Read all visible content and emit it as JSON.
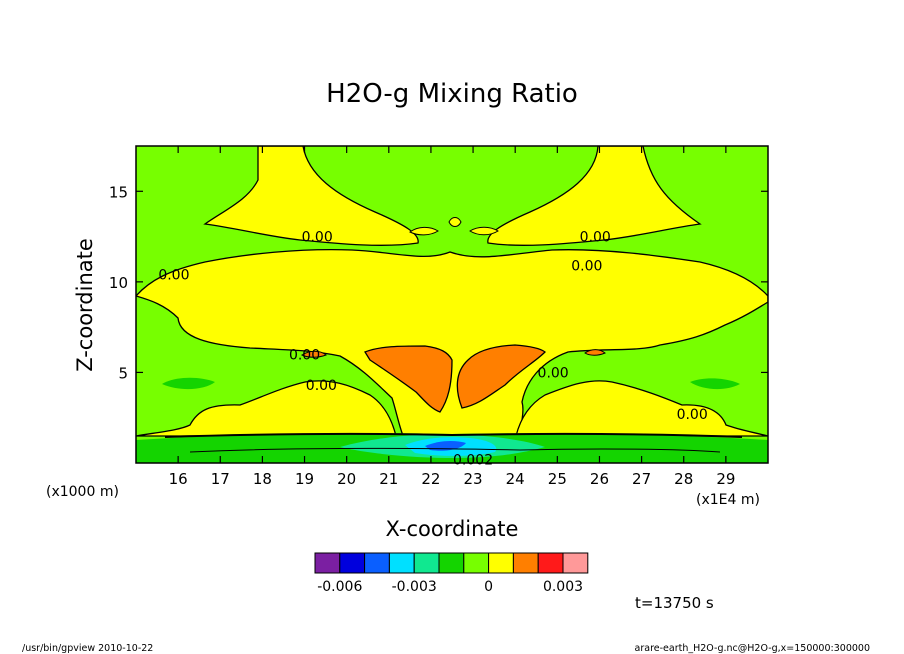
{
  "chart_data": {
    "type": "heatmap",
    "title": "H2O-g Mixing Ratio",
    "xlabel": "X-coordinate",
    "ylabel": "Z-coordinate",
    "x_unit": "(x1E4 m)",
    "y_unit": "(x1000 m)",
    "xlim": [
      15.0,
      30.0
    ],
    "ylim": [
      0.0,
      17.5
    ],
    "x_ticks": [
      16,
      17,
      18,
      19,
      20,
      21,
      22,
      23,
      24,
      25,
      26,
      27,
      28,
      29
    ],
    "y_ticks": [
      5,
      10,
      15
    ],
    "time_label": "t=13750 s",
    "colorbar": {
      "colors": [
        "#7b1fa2",
        "#0000dd",
        "#0a5fff",
        "#00e0ff",
        "#10e890",
        "#14d400",
        "#77ff00",
        "#ffff00",
        "#ff7f00",
        "#ff1a1a",
        "#ff9999"
      ],
      "tick_labels": [
        {
          "label": "-0.006",
          "boundary": 1
        },
        {
          "label": "-0.003",
          "boundary": 4
        },
        {
          "label": "0",
          "boundary": 7
        },
        {
          "label": "0.003",
          "boundary": 10
        }
      ]
    },
    "contour_labels": [
      {
        "text": "0.00",
        "x": 19.3,
        "z": 12.5
      },
      {
        "text": "0.00",
        "x": 15.9,
        "z": 10.4
      },
      {
        "text": "0.00",
        "x": 25.9,
        "z": 12.5
      },
      {
        "text": "0.00",
        "x": 25.7,
        "z": 10.9
      },
      {
        "text": "0.00",
        "x": 19.0,
        "z": 6.0
      },
      {
        "text": "0.00",
        "x": 19.4,
        "z": 4.3
      },
      {
        "text": "0.00",
        "x": 24.9,
        "z": 5.0
      },
      {
        "text": "0.00",
        "x": 28.2,
        "z": 2.7
      },
      {
        "text": "0.002",
        "x": 23.0,
        "z": 0.2
      }
    ],
    "grid": false,
    "legend": "bottom-colorbar"
  },
  "footer": {
    "left": "/usr/bin/gpview  2010-10-22",
    "right": "arare-earth_H2O-g.nc@H2O-g,x=150000:300000"
  }
}
